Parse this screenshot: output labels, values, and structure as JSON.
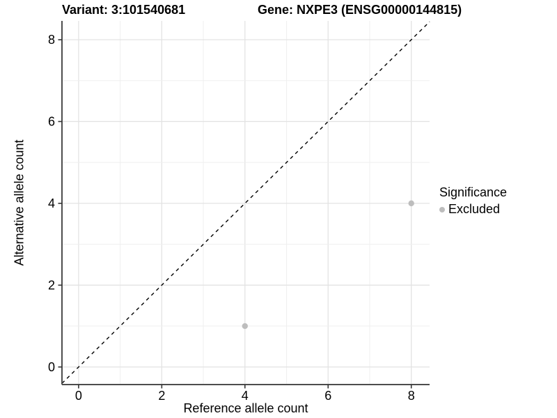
{
  "chart_data": {
    "type": "scatter",
    "title_left": "Variant: 3:101540681",
    "title_right": "Gene: NXPE3 (ENSG00000144815)",
    "xlabel": "Reference allele count",
    "ylabel": "Alternative allele count",
    "xlim": [
      -0.4,
      8.44
    ],
    "ylim": [
      -0.43,
      8.46
    ],
    "x_ticks": [
      0,
      2,
      4,
      6,
      8
    ],
    "y_ticks": [
      0,
      2,
      4,
      6,
      8
    ],
    "minor_grid_step": 1,
    "grid": true,
    "legend_position": "right",
    "series": [
      {
        "name": "Excluded",
        "color": "#bdbdbd",
        "points": [
          {
            "x": 4,
            "y": 1
          },
          {
            "x": 8,
            "y": 4
          }
        ]
      }
    ],
    "reference_line": {
      "type": "identity",
      "equation": "y = x",
      "style": "dashed",
      "color": "#000000"
    },
    "legend": {
      "title": "Significance",
      "entries": [
        {
          "label": "Excluded",
          "color": "#bdbdbd"
        }
      ]
    },
    "colors": {
      "grid_major": "#e3e3e3",
      "grid_minor": "#efefef",
      "axis_line": "#4d4d4d",
      "tick_mark": "#333333",
      "panel_background": "#ffffff"
    }
  }
}
